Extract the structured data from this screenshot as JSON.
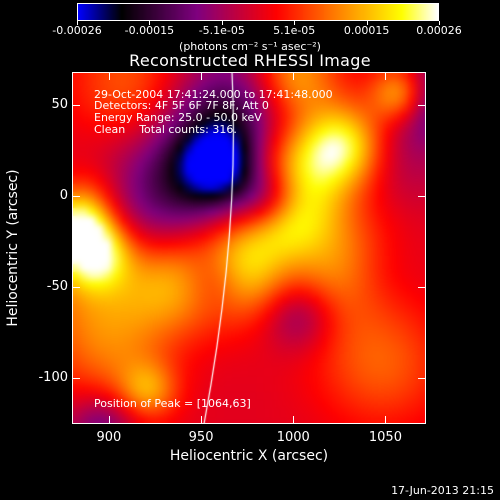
{
  "colorbar": {
    "tick_labels": [
      "-0.00026",
      "-0.00015",
      "-5.1e-05",
      "5.1e-05",
      "0.00015",
      "0.00026"
    ],
    "units": "(photons cm⁻² s⁻¹ asec⁻²)",
    "colormap": [
      "#0000ff",
      "#000000",
      "#800080",
      "#ff0000",
      "#ff8000",
      "#ffff00",
      "#ffffff"
    ]
  },
  "chart_data": {
    "type": "heatmap",
    "title": "Reconstructed RHESSI Image",
    "xlabel": "Heliocentric X (arcsec)",
    "ylabel": "Heliocentric Y (arcsec)",
    "xlim": [
      880,
      1072
    ],
    "ylim": [
      -125,
      68
    ],
    "x_ticks": [
      900,
      950,
      1000,
      1050
    ],
    "y_ticks": [
      50,
      0,
      -50,
      -100
    ],
    "value_range": [
      -0.00026,
      0.00026
    ],
    "annotations": [
      "29-Oct-2004 17:41:24.000 to 17:41:48.000",
      "Detectors: 4F 5F 6F 7F 8F, Att 0",
      "Energy Range: 25.0 - 50.0 keV",
      "Clean    Total counts: 316.",
      "Position of Peak = [1064,63]"
    ],
    "peak": {
      "x": 1064,
      "y": 63
    },
    "limb_line": true
  },
  "timestamp": "17-Jun-2013 21:15"
}
